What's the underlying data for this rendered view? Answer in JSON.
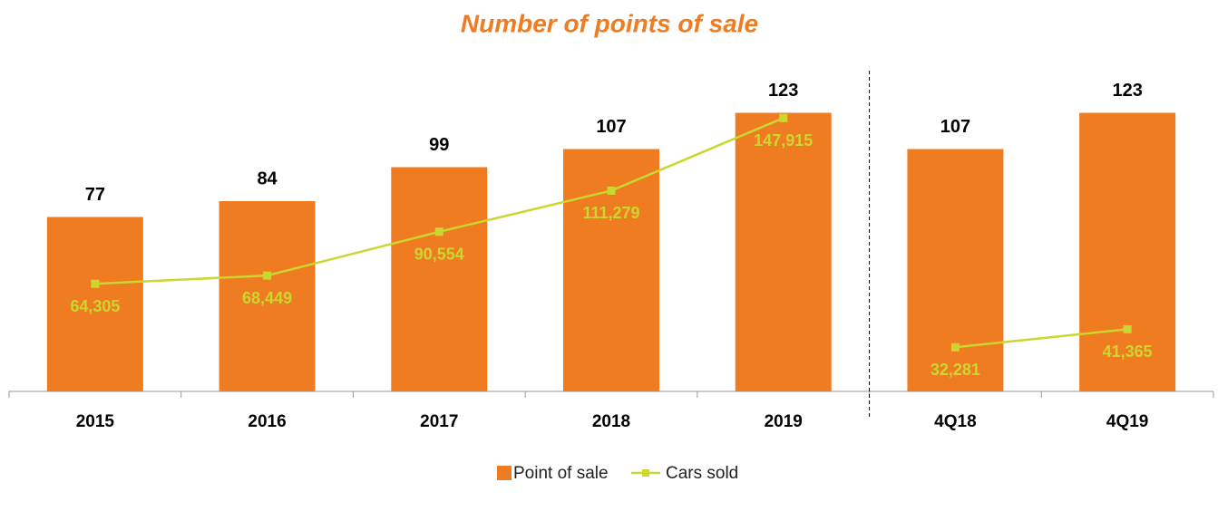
{
  "chart_data": {
    "type": "bar-line",
    "title": "Number of points of sale",
    "categories": [
      "2015",
      "2016",
      "2017",
      "2018",
      "2019",
      "4Q18",
      "4Q19"
    ],
    "divider_after_index": 4,
    "ylim": [
      0,
      140
    ],
    "y2lim": [
      10000,
      170000
    ],
    "series": [
      {
        "name": "Point of sale",
        "type": "bar",
        "color": "#f07c22",
        "values": [
          77,
          84,
          99,
          107,
          123,
          107,
          123
        ]
      },
      {
        "name": "Cars sold",
        "type": "line",
        "axis": "y2",
        "color": "#cbd62e",
        "values": [
          64305,
          68449,
          90554,
          111279,
          147915,
          32281,
          41365
        ],
        "value_labels": [
          "64,305",
          "68,449",
          "90,554",
          "111,279",
          "147,915",
          "32,281",
          "41,365"
        ]
      }
    ],
    "legend": "bottom"
  }
}
